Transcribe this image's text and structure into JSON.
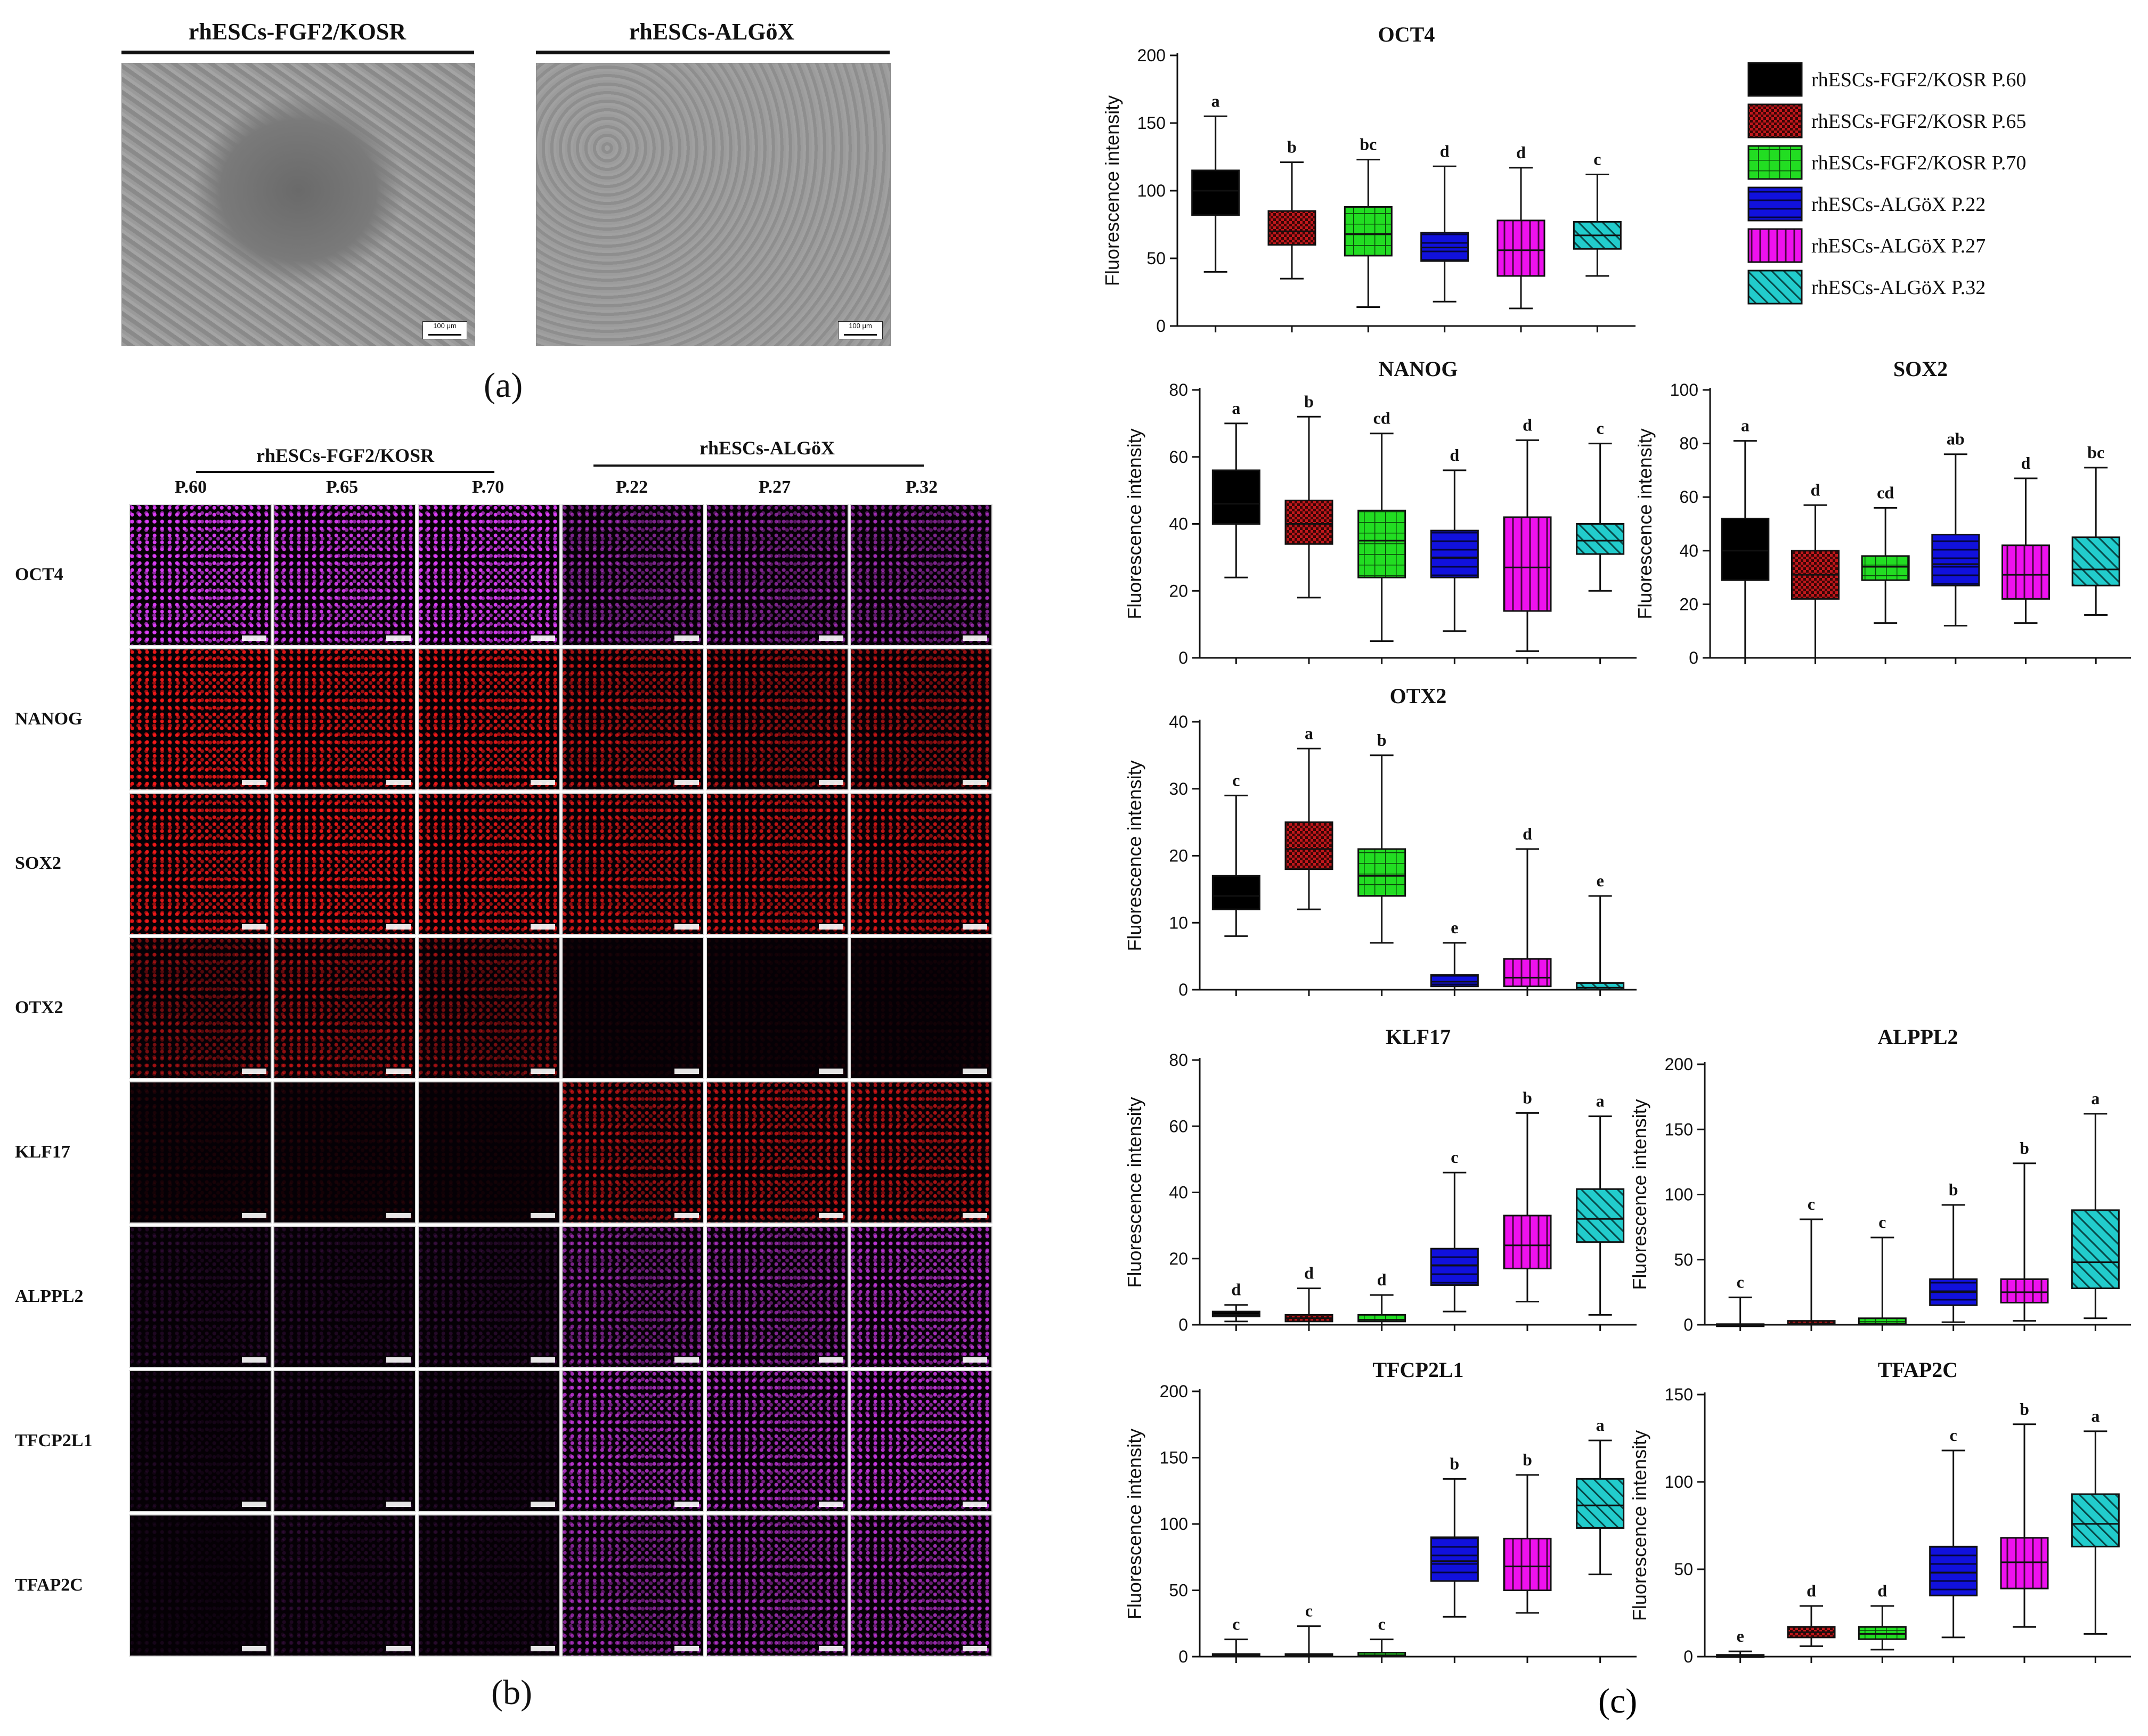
{
  "panel_a": {
    "label": "(a)",
    "images": [
      {
        "title": "rhESCs-FGF2/KOSR",
        "scale": "100 μm"
      },
      {
        "title": "rhESCs-ALGöX",
        "scale": "100 μm"
      }
    ]
  },
  "panel_b": {
    "label": "(b)",
    "groups": [
      "rhESCs-FGF2/KOSR",
      "rhESCs-ALGöX"
    ],
    "columns": [
      "P.60",
      "P.65",
      "P.70",
      "P.22",
      "P.27",
      "P.32"
    ],
    "rows": [
      "OCT4",
      "NANOG",
      "SOX2",
      "OTX2",
      "KLF17",
      "ALPPL2",
      "TFCP2L1",
      "TFAP2C"
    ],
    "row_colors": [
      "#e040fb",
      "#ff1a1a",
      "#ff1a1a",
      "#ff1a1a",
      "#ff1a1a",
      "#d63cf0",
      "#d63cf0",
      "#d63cf0"
    ],
    "intensity": [
      [
        0.95,
        0.9,
        0.95,
        0.55,
        0.55,
        0.55
      ],
      [
        0.9,
        0.85,
        0.85,
        0.65,
        0.6,
        0.6
      ],
      [
        0.85,
        0.9,
        0.85,
        0.75,
        0.75,
        0.75
      ],
      [
        0.45,
        0.55,
        0.45,
        0.05,
        0.05,
        0.05
      ],
      [
        0.08,
        0.08,
        0.06,
        0.6,
        0.65,
        0.65
      ],
      [
        0.12,
        0.12,
        0.15,
        0.55,
        0.6,
        0.75
      ],
      [
        0.08,
        0.1,
        0.1,
        0.75,
        0.75,
        0.85
      ],
      [
        0.05,
        0.12,
        0.1,
        0.6,
        0.65,
        0.7
      ]
    ]
  },
  "panel_c": {
    "label": "(c)"
  },
  "legend": {
    "entries": [
      {
        "label": "rhESCs-FGF2/KOSR P.60",
        "color": "#000000",
        "pattern": "solid"
      },
      {
        "label": "rhESCs-FGF2/KOSR P.65",
        "color": "#c0181c",
        "pattern": "checker"
      },
      {
        "label": "rhESCs-FGF2/KOSR P.70",
        "color": "#22dd22",
        "pattern": "grid"
      },
      {
        "label": "rhESCs-ALGöX P.22",
        "color": "#1111dd",
        "pattern": "hlines"
      },
      {
        "label": "rhESCs-ALGöX P.27",
        "color": "#ee11ee",
        "pattern": "vlines"
      },
      {
        "label": "rhESCs-ALGöX P.32",
        "color": "#22cccc",
        "pattern": "diag"
      }
    ]
  },
  "chart_data": [
    {
      "type": "box",
      "title": "OCT4",
      "ylabel": "Fluorescence intensity",
      "ylim": [
        0,
        200
      ],
      "yticks": [
        0,
        50,
        100,
        150,
        200
      ],
      "boxes": [
        {
          "min": 40,
          "q1": 82,
          "median": 100,
          "q3": 115,
          "max": 155,
          "sig": "a"
        },
        {
          "min": 35,
          "q1": 60,
          "median": 70,
          "q3": 85,
          "max": 121,
          "sig": "b"
        },
        {
          "min": 14,
          "q1": 52,
          "median": 68,
          "q3": 88,
          "max": 123,
          "sig": "bc"
        },
        {
          "min": 18,
          "q1": 48,
          "median": 58,
          "q3": 69,
          "max": 118,
          "sig": "d"
        },
        {
          "min": 13,
          "q1": 37,
          "median": 56,
          "q3": 78,
          "max": 117,
          "sig": "d"
        },
        {
          "min": 37,
          "q1": 57,
          "median": 67,
          "q3": 77,
          "max": 112,
          "sig": "c"
        }
      ]
    },
    {
      "type": "box",
      "title": "NANOG",
      "ylabel": "Fluorescence intensity",
      "ylim": [
        0,
        80
      ],
      "yticks": [
        0,
        20,
        40,
        60,
        80
      ],
      "boxes": [
        {
          "min": 24,
          "q1": 40,
          "median": 46,
          "q3": 56,
          "max": 70,
          "sig": "a"
        },
        {
          "min": 18,
          "q1": 34,
          "median": 40,
          "q3": 47,
          "max": 72,
          "sig": "b"
        },
        {
          "min": 5,
          "q1": 24,
          "median": 35,
          "q3": 44,
          "max": 67,
          "sig": "cd"
        },
        {
          "min": 8,
          "q1": 24,
          "median": 30,
          "q3": 38,
          "max": 56,
          "sig": "d"
        },
        {
          "min": 2,
          "q1": 14,
          "median": 27,
          "q3": 42,
          "max": 65,
          "sig": "d"
        },
        {
          "min": 20,
          "q1": 31,
          "median": 35,
          "q3": 40,
          "max": 64,
          "sig": "c"
        }
      ]
    },
    {
      "type": "box",
      "title": "SOX2",
      "ylabel": "Fluorescence intensity",
      "ylim": [
        0,
        100
      ],
      "yticks": [
        0,
        20,
        40,
        60,
        80,
        100
      ],
      "boxes": [
        {
          "min": 0,
          "q1": 29,
          "median": 40,
          "q3": 52,
          "max": 81,
          "sig": "a"
        },
        {
          "min": 0,
          "q1": 22,
          "median": 31,
          "q3": 40,
          "max": 57,
          "sig": "d"
        },
        {
          "min": 13,
          "q1": 29,
          "median": 34,
          "q3": 38,
          "max": 56,
          "sig": "cd"
        },
        {
          "min": 12,
          "q1": 27,
          "median": 35,
          "q3": 46,
          "max": 76,
          "sig": "ab"
        },
        {
          "min": 13,
          "q1": 22,
          "median": 31,
          "q3": 42,
          "max": 67,
          "sig": "d"
        },
        {
          "min": 16,
          "q1": 27,
          "median": 33,
          "q3": 45,
          "max": 71,
          "sig": "bc"
        }
      ]
    },
    {
      "type": "box",
      "title": "OTX2",
      "ylabel": "Fluorescence intensity",
      "ylim": [
        0,
        40
      ],
      "yticks": [
        0,
        10,
        20,
        30,
        40
      ],
      "boxes": [
        {
          "min": 8,
          "q1": 12,
          "median": 14,
          "q3": 17,
          "max": 29,
          "sig": "c"
        },
        {
          "min": 12,
          "q1": 18,
          "median": 21,
          "q3": 25,
          "max": 36,
          "sig": "a"
        },
        {
          "min": 7,
          "q1": 14,
          "median": 17,
          "q3": 21,
          "max": 35,
          "sig": "b"
        },
        {
          "min": 0,
          "q1": 0.5,
          "median": 1.2,
          "q3": 2.2,
          "max": 7,
          "sig": "e"
        },
        {
          "min": 0,
          "q1": 0.5,
          "median": 1.8,
          "q3": 4.6,
          "max": 21,
          "sig": "d"
        },
        {
          "min": 0,
          "q1": 0,
          "median": 0.3,
          "q3": 1,
          "max": 14,
          "sig": "e"
        }
      ]
    },
    {
      "type": "box",
      "title": "KLF17",
      "ylabel": "Fluorescence intensity",
      "ylim": [
        0,
        80
      ],
      "yticks": [
        0,
        20,
        40,
        60,
        80
      ],
      "boxes": [
        {
          "min": 1,
          "q1": 2.5,
          "median": 3,
          "q3": 4,
          "max": 6,
          "sig": "d"
        },
        {
          "min": 0,
          "q1": 1,
          "median": 2,
          "q3": 3,
          "max": 11,
          "sig": "d"
        },
        {
          "min": 0,
          "q1": 1,
          "median": 1.5,
          "q3": 3,
          "max": 9,
          "sig": "d"
        },
        {
          "min": 4,
          "q1": 12,
          "median": 18,
          "q3": 23,
          "max": 46,
          "sig": "c"
        },
        {
          "min": 7,
          "q1": 17,
          "median": 24,
          "q3": 33,
          "max": 64,
          "sig": "b"
        },
        {
          "min": 3,
          "q1": 25,
          "median": 32,
          "q3": 41,
          "max": 63,
          "sig": "a"
        }
      ]
    },
    {
      "type": "box",
      "title": "ALPPL2",
      "ylabel": "Fluorescence intensity",
      "ylim": [
        0,
        200
      ],
      "yticks": [
        0,
        50,
        100,
        150,
        200
      ],
      "boxes": [
        {
          "min": 0,
          "q1": 0,
          "median": 0,
          "q3": 0.5,
          "max": 21,
          "sig": "c"
        },
        {
          "min": 0,
          "q1": 0.5,
          "median": 1,
          "q3": 3,
          "max": 81,
          "sig": "c"
        },
        {
          "min": 0,
          "q1": 0.5,
          "median": 1,
          "q3": 5,
          "max": 67,
          "sig": "c"
        },
        {
          "min": 2,
          "q1": 15,
          "median": 25,
          "q3": 35,
          "max": 92,
          "sig": "b"
        },
        {
          "min": 3,
          "q1": 17,
          "median": 25,
          "q3": 35,
          "max": 124,
          "sig": "b"
        },
        {
          "min": 5,
          "q1": 28,
          "median": 48,
          "q3": 88,
          "max": 162,
          "sig": "a"
        }
      ]
    },
    {
      "type": "box",
      "title": "TFCP2L1",
      "ylabel": "Fluorescence intensity",
      "ylim": [
        0,
        200
      ],
      "yticks": [
        0,
        50,
        100,
        150,
        200
      ],
      "boxes": [
        {
          "min": 0,
          "q1": 0,
          "median": 1,
          "q3": 2,
          "max": 13,
          "sig": "c"
        },
        {
          "min": 0,
          "q1": 0,
          "median": 1,
          "q3": 2,
          "max": 23,
          "sig": "c"
        },
        {
          "min": 0,
          "q1": 0.5,
          "median": 1,
          "q3": 3,
          "max": 13,
          "sig": "c"
        },
        {
          "min": 30,
          "q1": 57,
          "median": 72,
          "q3": 90,
          "max": 134,
          "sig": "b"
        },
        {
          "min": 33,
          "q1": 50,
          "median": 68,
          "q3": 89,
          "max": 137,
          "sig": "b"
        },
        {
          "min": 62,
          "q1": 97,
          "median": 114,
          "q3": 134,
          "max": 163,
          "sig": "a"
        }
      ]
    },
    {
      "type": "box",
      "title": "TFAP2C",
      "ylabel": "Fluorescence intensity",
      "ylim": [
        0,
        150
      ],
      "yticks": [
        0,
        50,
        100,
        150
      ],
      "boxes": [
        {
          "min": 0,
          "q1": 0,
          "median": 0.5,
          "q3": 1,
          "max": 3,
          "sig": "e"
        },
        {
          "min": 6,
          "q1": 11,
          "median": 14,
          "q3": 17,
          "max": 29,
          "sig": "d"
        },
        {
          "min": 4,
          "q1": 10,
          "median": 13,
          "q3": 17,
          "max": 29,
          "sig": "d"
        },
        {
          "min": 11,
          "q1": 35,
          "median": 48,
          "q3": 63,
          "max": 118,
          "sig": "c"
        },
        {
          "min": 17,
          "q1": 39,
          "median": 54,
          "q3": 68,
          "max": 133,
          "sig": "b"
        },
        {
          "min": 13,
          "q1": 63,
          "median": 76,
          "q3": 93,
          "max": 129,
          "sig": "a"
        }
      ]
    }
  ]
}
